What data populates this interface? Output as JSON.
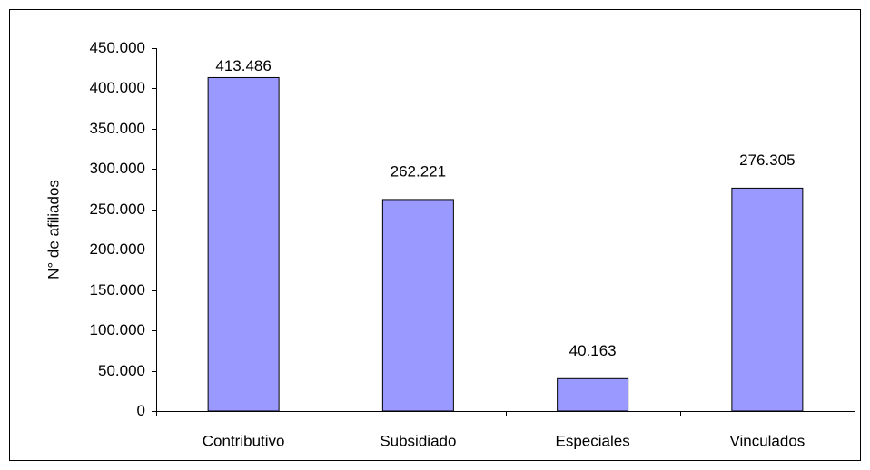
{
  "chart_data": {
    "type": "bar",
    "y_label": "N° de afiliados",
    "categories": [
      "Contributivo",
      "Subsidiado",
      "Especiales",
      "Vinculados"
    ],
    "values": [
      413486,
      262221,
      40163,
      276305
    ],
    "value_labels": [
      "413.486",
      "262.221",
      "40.163",
      "276.305"
    ],
    "color": "#9999ff",
    "ylim": [
      0,
      450000
    ],
    "yticks": [
      0,
      {
        "value": 50000,
        "label": "50.000"
      },
      {
        "value": 100000,
        "label": "100.000"
      },
      {
        "value": 150000,
        "label": "150.000"
      },
      {
        "value": 200000,
        "label": "200.000"
      },
      {
        "value": 250000,
        "label": "250.000"
      },
      {
        "value": 300000,
        "label": "300.000"
      },
      {
        "value": 350000,
        "label": "350.000"
      },
      {
        "value": 400000,
        "label": "400.000"
      },
      {
        "value": 450000,
        "label": "450.000"
      }
    ],
    "grid": false
  }
}
